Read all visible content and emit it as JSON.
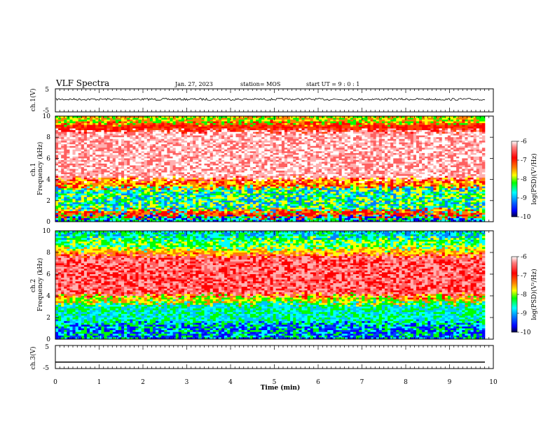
{
  "header": {
    "title": "VLF Spectra",
    "date": "Jan. 27, 2023",
    "station": "station= MOS",
    "start": "start  UT  =   9 : 0  : 1"
  },
  "chart_data": [
    {
      "type": "line",
      "panel": "ch1_waveform",
      "ylabel": "ch.1(V)",
      "ylim": [
        -5,
        5
      ],
      "yticks": [
        "5",
        "-5"
      ],
      "xlim": [
        0,
        10
      ],
      "series": [
        {
          "values_note": "noise",
          "level": 0
        }
      ]
    },
    {
      "type": "heatmap",
      "panel": "ch1_spectrogram",
      "ylabel": "ch.1\nFrequency (kHz)",
      "xlim": [
        0,
        10
      ],
      "ylim": [
        0,
        10
      ],
      "yticks": [
        "0",
        "2",
        "4",
        "6",
        "8",
        "10"
      ],
      "colorbar": {
        "label": "log(PSD)(V²/Hz)",
        "range": [
          -10,
          -6
        ],
        "ticks": [
          "-6",
          "-7",
          "-8",
          "-9",
          "-10"
        ]
      }
    },
    {
      "type": "heatmap",
      "panel": "ch2_spectrogram",
      "ylabel": "ch.2\nFrequency (kHz)",
      "xlim": [
        0,
        10
      ],
      "ylim": [
        0,
        10
      ],
      "yticks": [
        "0",
        "2",
        "4",
        "6",
        "8",
        "10"
      ],
      "colorbar": {
        "label": "log(PSD)(V²/Hz)",
        "range": [
          -10,
          -6
        ],
        "ticks": [
          "-6",
          "-7",
          "-8",
          "-9",
          "-10"
        ]
      }
    },
    {
      "type": "line",
      "panel": "ch3_waveform",
      "ylabel": "ch.3(V)",
      "ylim": [
        -5,
        5
      ],
      "yticks": [
        "5",
        "-5"
      ],
      "xlim": [
        0,
        10
      ],
      "xlabel": "Time (min)",
      "xticks": [
        "0",
        "1",
        "2",
        "3",
        "4",
        "5",
        "6",
        "7",
        "8",
        "9",
        "10"
      ],
      "series": [
        {
          "level": -2.2
        }
      ]
    }
  ],
  "colors": {
    "high": "#ff0000",
    "mid": "#00ff00",
    "low": "#0000ff"
  }
}
